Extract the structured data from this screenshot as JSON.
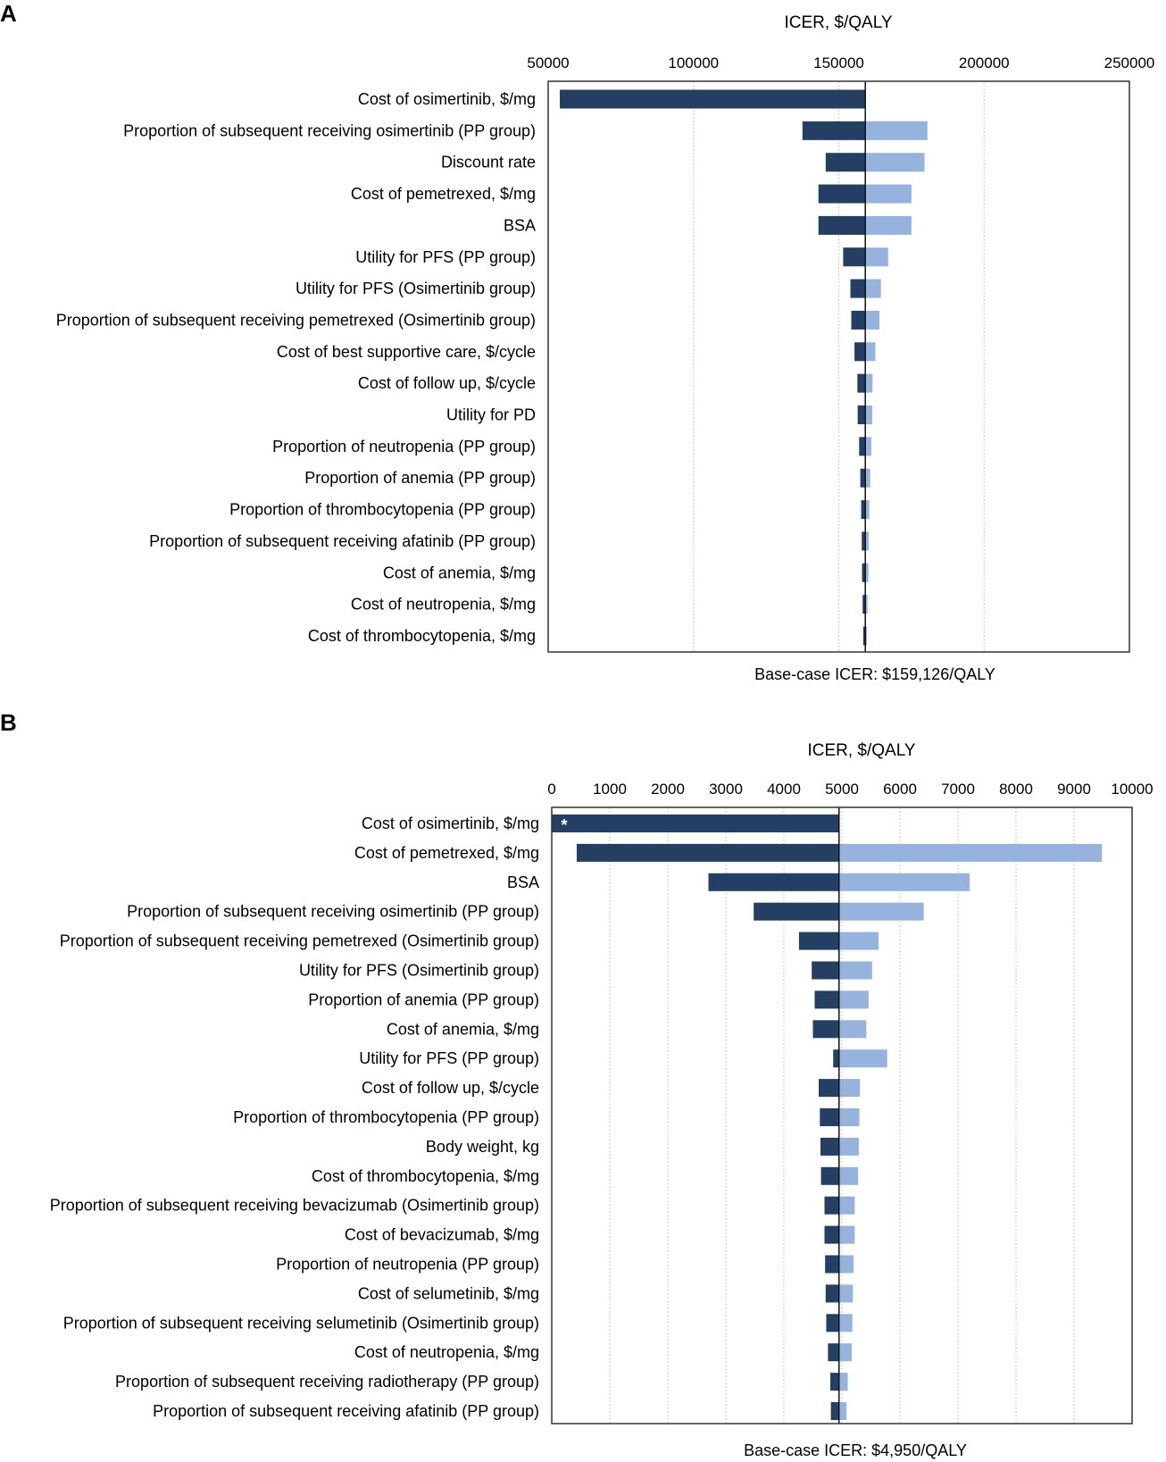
{
  "colors": {
    "low": "#243f63",
    "high": "#95b3dc",
    "frame": "#333333",
    "grid": "#c8c8c8"
  },
  "chart_data": [
    {
      "panel": "A",
      "type": "tornado",
      "title": "ICER, $/QALY",
      "base_label": "Base-case ICER: $159,126/QALY",
      "base_value": 159126,
      "xlim": [
        50000,
        250000
      ],
      "ticks": [
        50000,
        100000,
        150000,
        200000,
        250000
      ],
      "tick_labels": [
        "50000",
        "100000",
        "150000",
        "200000",
        "250000"
      ],
      "categories": [
        "Cost of osimertinib, $/mg",
        "Proportion of subsequent receiving osimertinib (PP group)",
        "Discount rate",
        "Cost of pemetrexed, $/mg",
        "BSA",
        "Utility for PFS (PP group)",
        "Utility for PFS (Osimertinib group)",
        "Proportion of subsequent receiving pemetrexed (Osimertinib group)",
        "Cost of best supportive care, $/cycle",
        "Cost of follow up, $/cycle",
        "Utility for PD",
        "Proportion of neutropenia (PP group)",
        "Proportion of anemia (PP group)",
        "Proportion of thrombocytopenia (PP group)",
        "Proportion of subsequent receiving afatinib (PP group)",
        "Cost of anemia, $/mg",
        "Cost of neutropenia, $/mg",
        "Cost of thrombocytopenia, $/mg"
      ],
      "low": [
        54000,
        137500,
        145500,
        143000,
        143000,
        151500,
        154000,
        154300,
        155400,
        156400,
        156500,
        157000,
        157400,
        157700,
        157900,
        158000,
        158200,
        158400
      ],
      "high": [
        159126,
        180500,
        179500,
        175000,
        175000,
        167000,
        164500,
        164000,
        162600,
        161600,
        161500,
        161200,
        160800,
        160500,
        160300,
        160200,
        159900,
        159700
      ],
      "marker": ""
    },
    {
      "panel": "B",
      "type": "tornado",
      "title": "ICER, $/QALY",
      "base_label": "Base-case ICER: $4,950/QALY",
      "base_value": 4950,
      "xlim": [
        0,
        10000
      ],
      "ticks": [
        0,
        1000,
        2000,
        3000,
        4000,
        5000,
        6000,
        7000,
        8000,
        9000,
        10000
      ],
      "tick_labels": [
        "0",
        "1000",
        "2000",
        "3000",
        "4000",
        "5000",
        "6000",
        "7000",
        "8000",
        "9000",
        "10000"
      ],
      "categories": [
        "Cost of osimertinib, $/mg",
        "Cost of pemetrexed, $/mg",
        "BSA",
        "Proportion of subsequent receiving osimertinib (PP group)",
        "Proportion of subsequent receiving pemetrexed (Osimertinib group)",
        "Utility for PFS (Osimertinib group)",
        "Proportion of anemia (PP group)",
        "Cost of anemia, $/mg",
        "Utility for PFS (PP group)",
        "Cost of follow up, $/cycle",
        "Proportion of thrombocytopenia (PP group)",
        "Body weight, kg",
        "Cost of thrombocytopenia, $/mg",
        "Proportion of subsequent receiving bevacizumab (Osimertinib group)",
        "Cost of bevacizumab, $/mg",
        "Proportion of neutropenia (PP group)",
        "Cost of selumetinib, $/mg",
        "Proportion of subsequent receiving selumetinib (Osimertinib group)",
        "Cost of neutropenia, $/mg",
        "Proportion of subsequent receiving radiotherapy (PP group)",
        "Proportion of subsequent receiving afatinib (PP group)"
      ],
      "low": [
        0,
        430,
        2700,
        3480,
        4260,
        4480,
        4530,
        4500,
        4850,
        4600,
        4620,
        4630,
        4640,
        4700,
        4700,
        4710,
        4720,
        4730,
        4760,
        4800,
        4810
      ],
      "high": [
        4950,
        9480,
        7200,
        6410,
        5630,
        5520,
        5460,
        5420,
        5780,
        5310,
        5300,
        5290,
        5280,
        5220,
        5220,
        5200,
        5190,
        5180,
        5170,
        5100,
        5080
      ],
      "marker": "*"
    }
  ]
}
